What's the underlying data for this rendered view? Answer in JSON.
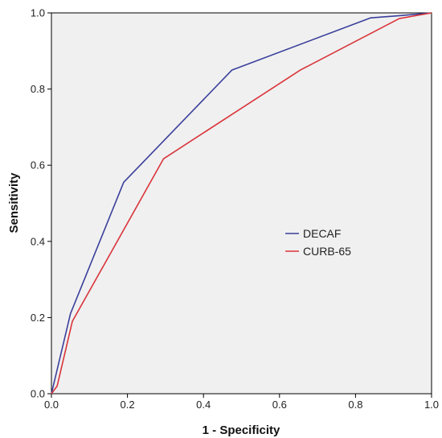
{
  "chart_data": {
    "type": "line",
    "title": "",
    "xlabel": "1 - Specificity",
    "ylabel": "Sensitivity",
    "xlim": [
      0,
      1
    ],
    "ylim": [
      0,
      1
    ],
    "x_ticks": [
      "0.0",
      "0.2",
      "0.4",
      "0.6",
      "0.8",
      "1.0"
    ],
    "y_ticks": [
      "0.0",
      "0.2",
      "0.4",
      "0.6",
      "0.8",
      "1.0"
    ],
    "grid": false,
    "legend_position": "center-right",
    "plot_background": "#f0f0f0",
    "series": [
      {
        "name": "DECAF",
        "color": "#3a3f9b",
        "points": [
          [
            0.0,
            0.0
          ],
          [
            0.05,
            0.21
          ],
          [
            0.19,
            0.555
          ],
          [
            0.475,
            0.85
          ],
          [
            0.84,
            0.987
          ],
          [
            0.92,
            0.993
          ],
          [
            1.0,
            1.0
          ]
        ]
      },
      {
        "name": "CURB-65",
        "color": "#d9343a",
        "points": [
          [
            0.0,
            0.0
          ],
          [
            0.015,
            0.02
          ],
          [
            0.055,
            0.19
          ],
          [
            0.295,
            0.617
          ],
          [
            0.655,
            0.85
          ],
          [
            0.915,
            0.985
          ],
          [
            1.0,
            1.0
          ]
        ]
      }
    ]
  }
}
